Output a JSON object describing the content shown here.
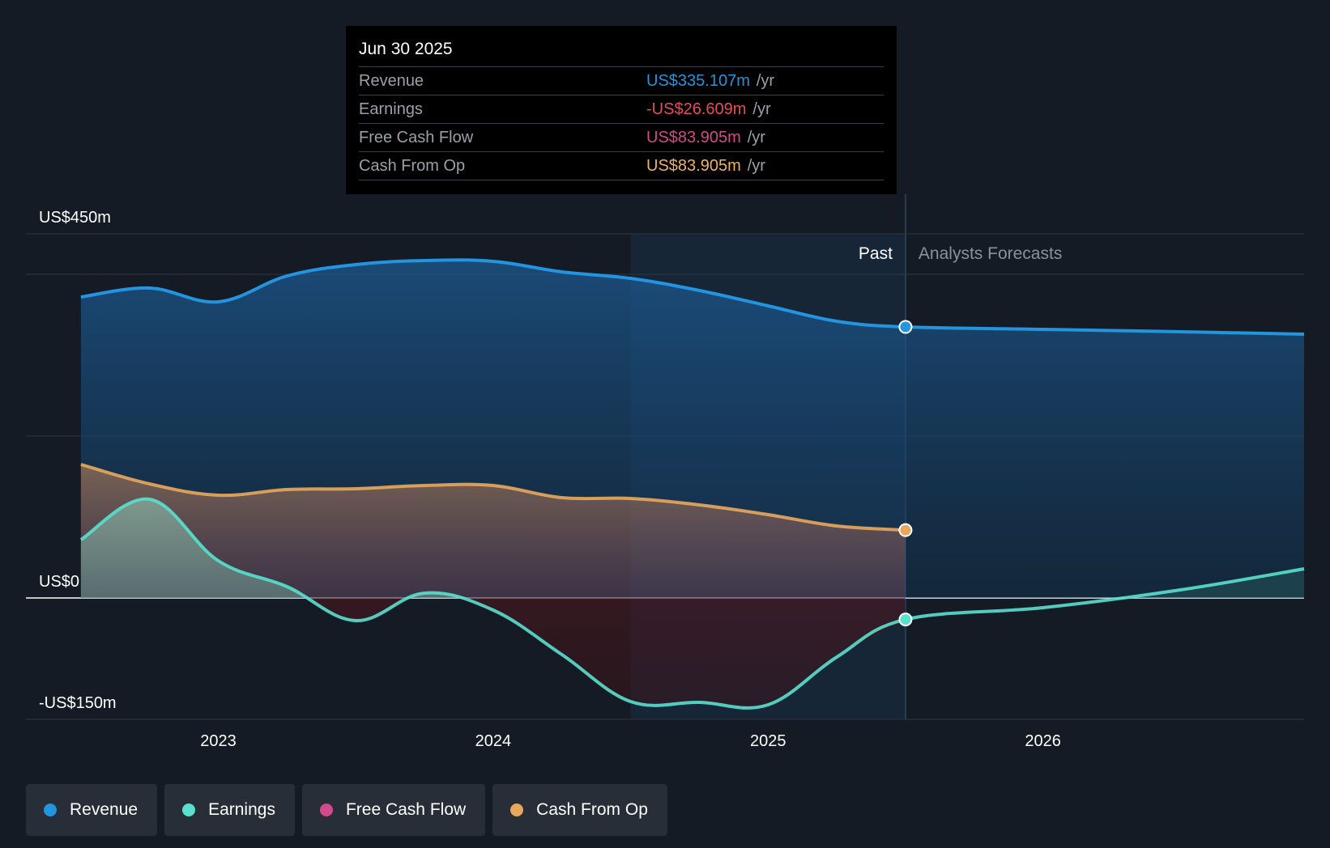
{
  "tooltip": {
    "date": "Jun 30 2025",
    "rows": [
      {
        "label": "Revenue",
        "value": "US$335.107m",
        "unit": "/yr",
        "color": "#2394df"
      },
      {
        "label": "Earnings",
        "value": "-US$26.609m",
        "unit": "/yr",
        "color": "#e64c5a"
      },
      {
        "label": "Free Cash Flow",
        "value": "US$83.905m",
        "unit": "/yr",
        "color": "#d04a8c"
      },
      {
        "label": "Cash From Op",
        "value": "US$83.905m",
        "unit": "/yr",
        "color": "#f0b060"
      }
    ]
  },
  "legend": [
    {
      "label": "Revenue",
      "color": "#2394df"
    },
    {
      "label": "Earnings",
      "color": "#59e0cf"
    },
    {
      "label": "Free Cash Flow",
      "color": "#d04a8c"
    },
    {
      "label": "Cash From Op",
      "color": "#e8a85c"
    }
  ],
  "chart_data": {
    "type": "area",
    "title": "",
    "xlabel": "",
    "ylabel": "",
    "ylim": [
      -150,
      450
    ],
    "xlim": [
      2022.3,
      2026.95
    ],
    "y_tick_labels": [
      {
        "value": 450,
        "label": "US$450m"
      },
      {
        "value": 0,
        "label": "US$0"
      },
      {
        "value": -150,
        "label": "-US$150m"
      }
    ],
    "gridlines": [
      450,
      400,
      200,
      0,
      -150
    ],
    "x_ticks": [
      {
        "value": 2023,
        "label": "2023"
      },
      {
        "value": 2024,
        "label": "2024"
      },
      {
        "value": 2025,
        "label": "2025"
      },
      {
        "value": 2026,
        "label": "2026"
      }
    ],
    "past_label": "Past",
    "forecast_label": "Analysts Forecasts",
    "divider_x": 2025.5,
    "highlight_start_x": 2024.5,
    "series": [
      {
        "name": "Revenue",
        "color": "#2394df",
        "x": [
          2022.5,
          2022.75,
          2023.0,
          2023.25,
          2023.5,
          2023.75,
          2024.0,
          2024.25,
          2024.5,
          2024.75,
          2025.0,
          2025.25,
          2025.5,
          2026.0,
          2026.5,
          2026.95
        ],
        "y": [
          372,
          383,
          366,
          398,
          412,
          417,
          416,
          403,
          395,
          380,
          361,
          342,
          335,
          332,
          329,
          326
        ]
      },
      {
        "name": "Earnings",
        "color": "#59e0cf",
        "x": [
          2022.5,
          2022.75,
          2023.0,
          2023.25,
          2023.5,
          2023.75,
          2024.0,
          2024.25,
          2024.5,
          2024.75,
          2025.0,
          2025.25,
          2025.5,
          2026.0,
          2026.5,
          2026.95
        ],
        "y": [
          72,
          122,
          46,
          14,
          -28,
          6,
          -15,
          -70,
          -128,
          -129,
          -132,
          -73,
          -26.609,
          -12,
          10,
          36
        ]
      },
      {
        "name": "Free Cash Flow",
        "color": "#d04a8c",
        "x": [
          2022.5,
          2022.75,
          2023.0,
          2023.25,
          2023.5,
          2023.75,
          2024.0,
          2024.25,
          2024.5,
          2024.75,
          2025.0,
          2025.25,
          2025.5
        ],
        "y": [
          165,
          141,
          127,
          134,
          135,
          139,
          139,
          124,
          123,
          115,
          103,
          89,
          83.905
        ]
      },
      {
        "name": "Cash From Op",
        "color": "#e8a85c",
        "x": [
          2022.5,
          2022.75,
          2023.0,
          2023.25,
          2023.5,
          2023.75,
          2024.0,
          2024.25,
          2024.5,
          2024.75,
          2025.0,
          2025.25,
          2025.5
        ],
        "y": [
          165,
          141,
          127,
          134,
          135,
          139,
          139,
          124,
          123,
          115,
          103,
          89,
          83.905
        ]
      }
    ]
  }
}
